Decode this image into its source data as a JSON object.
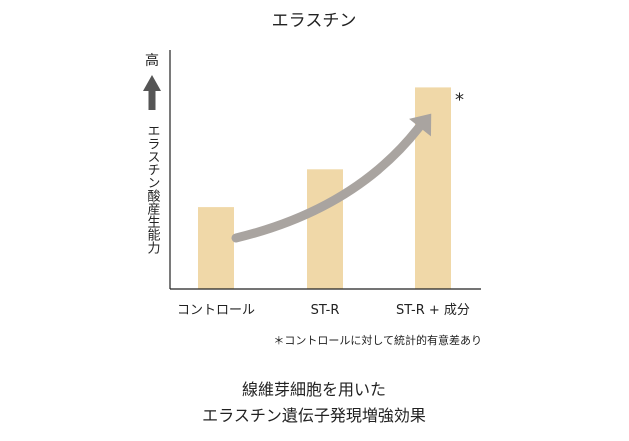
{
  "chart_data": {
    "type": "bar",
    "title": "エラスチン",
    "categories": [
      "コントロール",
      "ST-R",
      "ST-R + 成分"
    ],
    "values": [
      0.39,
      0.57,
      0.96
    ],
    "ylim": [
      0,
      1.0
    ],
    "ylabel": "エラスチン酸産生能力",
    "y_high_label": "高",
    "significance_marker": "*",
    "significant_category": "ST-R + 成分",
    "footnote": "＊コントロールに対して統計的有意差あり",
    "caption_lines": [
      "線維芽細胞を用いた",
      "エラスチン遺伝子発現増強効果"
    ],
    "grid": false,
    "legend": "none",
    "colors": {
      "bar": "#f0d8a8",
      "trend_arrow": "#a9a4a0",
      "axis": "#222222",
      "y_arrow": "#555555"
    }
  }
}
